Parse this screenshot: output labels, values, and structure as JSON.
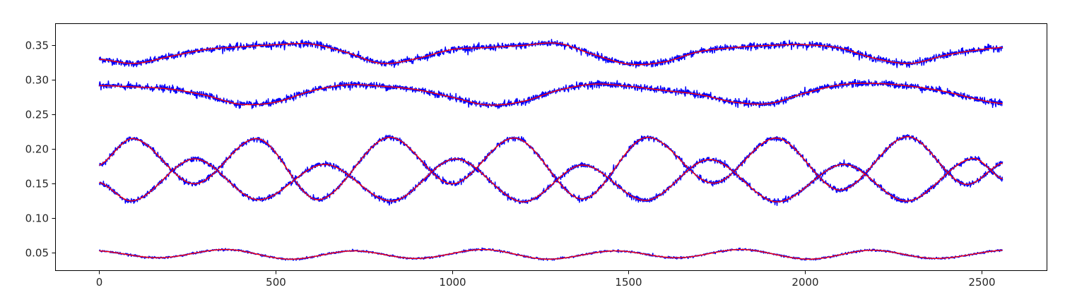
{
  "chart_data": {
    "type": "line",
    "title": "",
    "xlabel": "",
    "ylabel": "",
    "xlim": [
      -125,
      2685
    ],
    "ylim": [
      0.025,
      0.382
    ],
    "grid": false,
    "legend": "none",
    "x_ticks": [
      0,
      500,
      1000,
      1500,
      2000,
      2500
    ],
    "x_tick_labels": [
      "0",
      "500",
      "1000",
      "1500",
      "2000",
      "2500"
    ],
    "y_ticks": [
      0.05,
      0.1,
      0.15,
      0.2,
      0.25,
      0.3,
      0.35
    ],
    "y_tick_labels": [
      "0.05",
      "0.10",
      "0.15",
      "0.20",
      "0.25",
      "0.30",
      "0.35"
    ],
    "colors": {
      "data": "#0000ff",
      "fit": "#ff0000"
    },
    "series_style": {
      "data": "noisy measured trace (blue)",
      "fit": "smooth fitted curve (red)"
    },
    "x_max": 2560,
    "series": [
      {
        "x": [
          0,
          100,
          200,
          300,
          400,
          500,
          600,
          700,
          800,
          900,
          1000,
          1100,
          1200,
          1300,
          1400,
          1500,
          1600,
          1700,
          1800,
          1900,
          2000,
          2100,
          2200,
          2300,
          2400,
          2500,
          2560
        ],
        "values": [
          0.33,
          0.324,
          0.334,
          0.344,
          0.348,
          0.351,
          0.352,
          0.34,
          0.324,
          0.331,
          0.344,
          0.347,
          0.35,
          0.353,
          0.337,
          0.323,
          0.326,
          0.341,
          0.347,
          0.35,
          0.351,
          0.346,
          0.331,
          0.324,
          0.336,
          0.344,
          0.347
        ],
        "noise": 0.004
      },
      {
        "x": [
          0,
          100,
          200,
          300,
          400,
          500,
          600,
          700,
          800,
          900,
          1000,
          1100,
          1200,
          1300,
          1400,
          1500,
          1600,
          1700,
          1800,
          1900,
          2000,
          2100,
          2200,
          2300,
          2400,
          2500,
          2560
        ],
        "values": [
          0.292,
          0.29,
          0.287,
          0.278,
          0.265,
          0.268,
          0.284,
          0.293,
          0.291,
          0.286,
          0.275,
          0.264,
          0.269,
          0.285,
          0.294,
          0.291,
          0.285,
          0.279,
          0.268,
          0.266,
          0.281,
          0.293,
          0.295,
          0.291,
          0.283,
          0.271,
          0.266
        ],
        "noise": 0.004
      },
      {
        "x": [
          0,
          100,
          270,
          450,
          620,
          820,
          1000,
          1180,
          1370,
          1550,
          1740,
          1920,
          2100,
          2290,
          2450,
          2560
        ],
        "values": [
          0.177,
          0.215,
          0.15,
          0.215,
          0.127,
          0.217,
          0.15,
          0.216,
          0.128,
          0.217,
          0.151,
          0.216,
          0.141,
          0.218,
          0.15,
          0.18
        ],
        "noise": 0.003
      },
      {
        "x": [
          0,
          100,
          270,
          450,
          640,
          830,
          1010,
          1200,
          1370,
          1550,
          1730,
          1920,
          2110,
          2290,
          2470,
          2560
        ],
        "values": [
          0.152,
          0.126,
          0.186,
          0.127,
          0.178,
          0.125,
          0.186,
          0.124,
          0.177,
          0.126,
          0.185,
          0.124,
          0.178,
          0.125,
          0.186,
          0.157
        ],
        "noise": 0.003
      },
      {
        "x": [
          0,
          170,
          360,
          540,
          720,
          900,
          1090,
          1270,
          1460,
          1640,
          1820,
          2010,
          2190,
          2370,
          2560
        ],
        "values": [
          0.053,
          0.043,
          0.055,
          0.041,
          0.053,
          0.042,
          0.055,
          0.041,
          0.053,
          0.043,
          0.055,
          0.041,
          0.054,
          0.042,
          0.054
        ],
        "noise": 0.0012
      }
    ]
  }
}
